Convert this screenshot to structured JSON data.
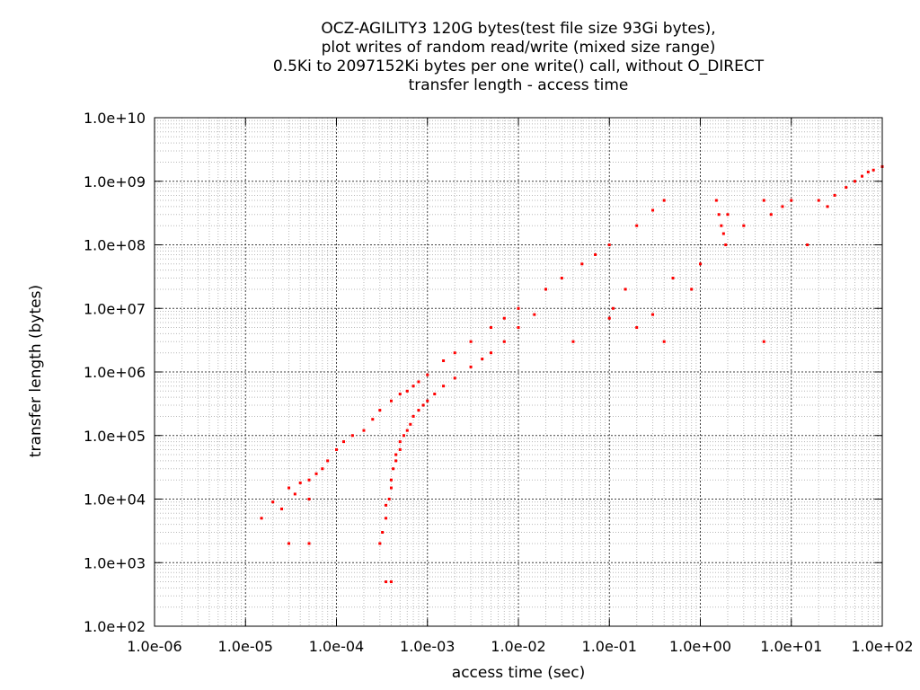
{
  "chart_data": {
    "type": "scatter",
    "title_lines": [
      "OCZ-AGILITY3 120G bytes(test file size 93Gi bytes),",
      "plot writes of random read/write (mixed size range)",
      "0.5Ki to 2097152Ki bytes per one write() call, without O_DIRECT",
      "transfer length - access time"
    ],
    "xlabel": "access time (sec)",
    "ylabel": "transfer length (bytes)",
    "xscale": "log",
    "yscale": "log",
    "xlim": [
      1e-06,
      100
    ],
    "ylim": [
      100,
      10000000000.0
    ],
    "grid": true,
    "marker_color": "#ff0000",
    "x_ticks": [
      {
        "value": 1e-06,
        "label": "1.0e-06"
      },
      {
        "value": 1e-05,
        "label": "1.0e-05"
      },
      {
        "value": 0.0001,
        "label": "1.0e-04"
      },
      {
        "value": 0.001,
        "label": "1.0e-03"
      },
      {
        "value": 0.01,
        "label": "1.0e-02"
      },
      {
        "value": 0.1,
        "label": "1.0e-01"
      },
      {
        "value": 1,
        "label": "1.0e+00"
      },
      {
        "value": 10,
        "label": "1.0e+01"
      },
      {
        "value": 100,
        "label": "1.0e+02"
      }
    ],
    "y_ticks": [
      {
        "value": 100,
        "label": "1.0e+02"
      },
      {
        "value": 1000,
        "label": "1.0e+03"
      },
      {
        "value": 10000,
        "label": "1.0e+04"
      },
      {
        "value": 100000,
        "label": "1.0e+05"
      },
      {
        "value": 1000000,
        "label": "1.0e+06"
      },
      {
        "value": 10000000,
        "label": "1.0e+07"
      },
      {
        "value": 100000000,
        "label": "1.0e+08"
      },
      {
        "value": 1000000000,
        "label": "1.0e+09"
      },
      {
        "value": 10000000000,
        "label": "1.0e+10"
      }
    ],
    "points": [
      [
        1.5e-05,
        5000
      ],
      [
        2e-05,
        9000
      ],
      [
        2.5e-05,
        7000
      ],
      [
        3e-05,
        2000
      ],
      [
        3e-05,
        15000
      ],
      [
        3.5e-05,
        12000
      ],
      [
        4e-05,
        18000
      ],
      [
        5e-05,
        2000
      ],
      [
        5e-05,
        10000
      ],
      [
        5e-05,
        20000
      ],
      [
        6e-05,
        25000
      ],
      [
        7e-05,
        30000
      ],
      [
        8e-05,
        40000
      ],
      [
        0.0001,
        60000
      ],
      [
        0.00012,
        80000
      ],
      [
        0.00015,
        100000
      ],
      [
        0.0002,
        120000
      ],
      [
        0.00025,
        180000
      ],
      [
        0.0003,
        250000
      ],
      [
        0.0004,
        350000
      ],
      [
        0.0005,
        450000
      ],
      [
        0.0006,
        500000
      ],
      [
        0.0007,
        600000
      ],
      [
        0.0008,
        700000
      ],
      [
        0.001,
        900000
      ],
      [
        0.0015,
        1500000
      ],
      [
        0.002,
        2000000
      ],
      [
        0.003,
        3000000
      ],
      [
        0.005,
        5000000
      ],
      [
        0.007,
        7000000
      ],
      [
        0.01,
        10000000
      ],
      [
        0.02,
        20000000
      ],
      [
        0.03,
        30000000
      ],
      [
        0.05,
        50000000
      ],
      [
        0.07,
        70000000
      ],
      [
        0.1,
        100000000
      ],
      [
        0.2,
        200000000
      ],
      [
        0.3,
        350000000
      ],
      [
        0.4,
        500000000
      ],
      [
        0.0003,
        2000
      ],
      [
        0.00032,
        3000
      ],
      [
        0.00035,
        5000
      ],
      [
        0.00035,
        8000
      ],
      [
        0.00038,
        10000
      ],
      [
        0.0004,
        15000
      ],
      [
        0.0004,
        20000
      ],
      [
        0.00042,
        30000
      ],
      [
        0.00045,
        40000
      ],
      [
        0.00045,
        50000
      ],
      [
        0.0005,
        60000
      ],
      [
        0.0005,
        80000
      ],
      [
        0.00055,
        100000
      ],
      [
        0.0006,
        120000
      ],
      [
        0.00065,
        150000
      ],
      [
        0.0007,
        200000
      ],
      [
        0.0008,
        250000
      ],
      [
        0.0009,
        300000
      ],
      [
        0.001,
        350000
      ],
      [
        0.0012,
        450000
      ],
      [
        0.0015,
        600000
      ],
      [
        0.002,
        800000
      ],
      [
        0.003,
        1200000
      ],
      [
        0.004,
        1600000
      ],
      [
        0.005,
        2000000
      ],
      [
        0.007,
        3000000
      ],
      [
        0.01,
        5000000
      ],
      [
        0.015,
        8000000
      ],
      [
        0.00035,
        500
      ],
      [
        0.0004,
        500
      ],
      [
        0.11,
        10000000
      ],
      [
        0.15,
        20000000
      ],
      [
        0.2,
        5000000
      ],
      [
        0.3,
        8000000
      ],
      [
        0.4,
        3000000
      ],
      [
        0.04,
        3000000
      ],
      [
        0.1,
        7000000
      ],
      [
        0.5,
        30000000
      ],
      [
        1.5,
        500000000
      ],
      [
        1.6,
        300000000
      ],
      [
        1.7,
        200000000
      ],
      [
        1.8,
        150000000
      ],
      [
        1.9,
        100000000
      ],
      [
        2,
        300000000
      ],
      [
        3,
        200000000
      ],
      [
        5,
        500000000
      ],
      [
        6,
        300000000
      ],
      [
        8,
        400000000
      ],
      [
        10,
        500000000
      ],
      [
        15,
        100000000
      ],
      [
        20,
        500000000
      ],
      [
        25,
        400000000
      ],
      [
        30,
        600000000
      ],
      [
        40,
        800000000
      ],
      [
        50,
        1000000000
      ],
      [
        60,
        1200000000
      ],
      [
        70,
        1400000000
      ],
      [
        80,
        1500000000
      ],
      [
        100,
        1700000000
      ],
      [
        5,
        3000000
      ],
      [
        1,
        50000000
      ],
      [
        0.8,
        20000000
      ]
    ]
  }
}
